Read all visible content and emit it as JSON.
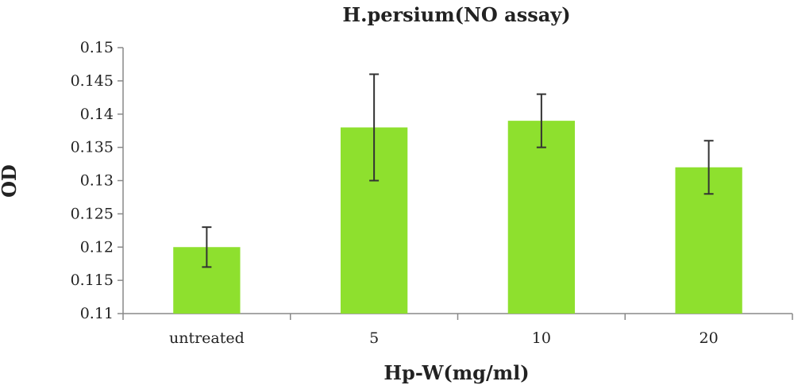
{
  "chart_data": {
    "type": "bar",
    "title": "H.persium(NO assay)",
    "xlabel": "Hp-W(mg/ml)",
    "ylabel": "OD",
    "categories": [
      "untreated",
      "5",
      "10",
      "20"
    ],
    "values": [
      0.12,
      0.138,
      0.139,
      0.132
    ],
    "error_bars": [
      0.003,
      0.008,
      0.004,
      0.004
    ],
    "ylim": [
      0.11,
      0.15
    ],
    "yticks": [
      "0.11",
      "0.115",
      "0.12",
      "0.125",
      "0.13",
      "0.135",
      "0.14",
      "0.145",
      "0.15"
    ],
    "bar_color": "#8ee02e",
    "grid": false,
    "legend": "none"
  }
}
